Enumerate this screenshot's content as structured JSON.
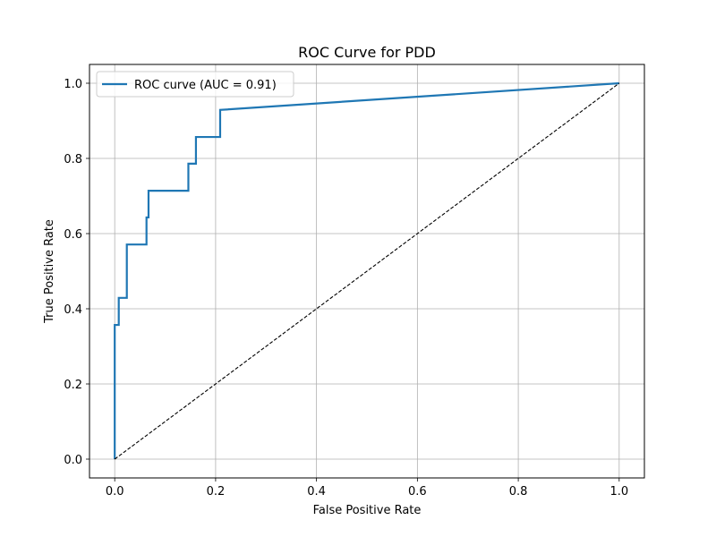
{
  "chart_data": {
    "type": "line",
    "title": "ROC Curve for PDD",
    "xlabel": "False Positive Rate",
    "ylabel": "True Positive Rate",
    "xlim": [
      -0.05,
      1.05
    ],
    "ylim": [
      -0.05,
      1.05
    ],
    "xticks": [
      0.0,
      0.2,
      0.4,
      0.6,
      0.8,
      1.0
    ],
    "yticks": [
      0.0,
      0.2,
      0.4,
      0.6,
      0.8,
      1.0
    ],
    "xtick_labels": [
      "0.0",
      "0.2",
      "0.4",
      "0.6",
      "0.8",
      "1.0"
    ],
    "ytick_labels": [
      "0.0",
      "0.2",
      "0.4",
      "0.6",
      "0.8",
      "1.0"
    ],
    "grid": true,
    "legend_position": "upper-left",
    "series": [
      {
        "name": "ROC curve (AUC = 0.91)",
        "color": "#1f77b4",
        "style": "solid",
        "x": [
          0.0,
          0.0,
          0.0,
          0.008,
          0.008,
          0.024,
          0.024,
          0.063,
          0.063,
          0.067,
          0.067,
          0.146,
          0.146,
          0.161,
          0.161,
          0.209,
          0.209,
          1.0
        ],
        "y": [
          0.0,
          0.357,
          0.357,
          0.357,
          0.429,
          0.429,
          0.571,
          0.571,
          0.643,
          0.643,
          0.714,
          0.714,
          0.786,
          0.786,
          0.857,
          0.857,
          0.929,
          1.0
        ]
      },
      {
        "color": "#000000",
        "style": "dashed",
        "x": [
          0.0,
          1.0
        ],
        "y": [
          0.0,
          1.0
        ]
      }
    ]
  }
}
